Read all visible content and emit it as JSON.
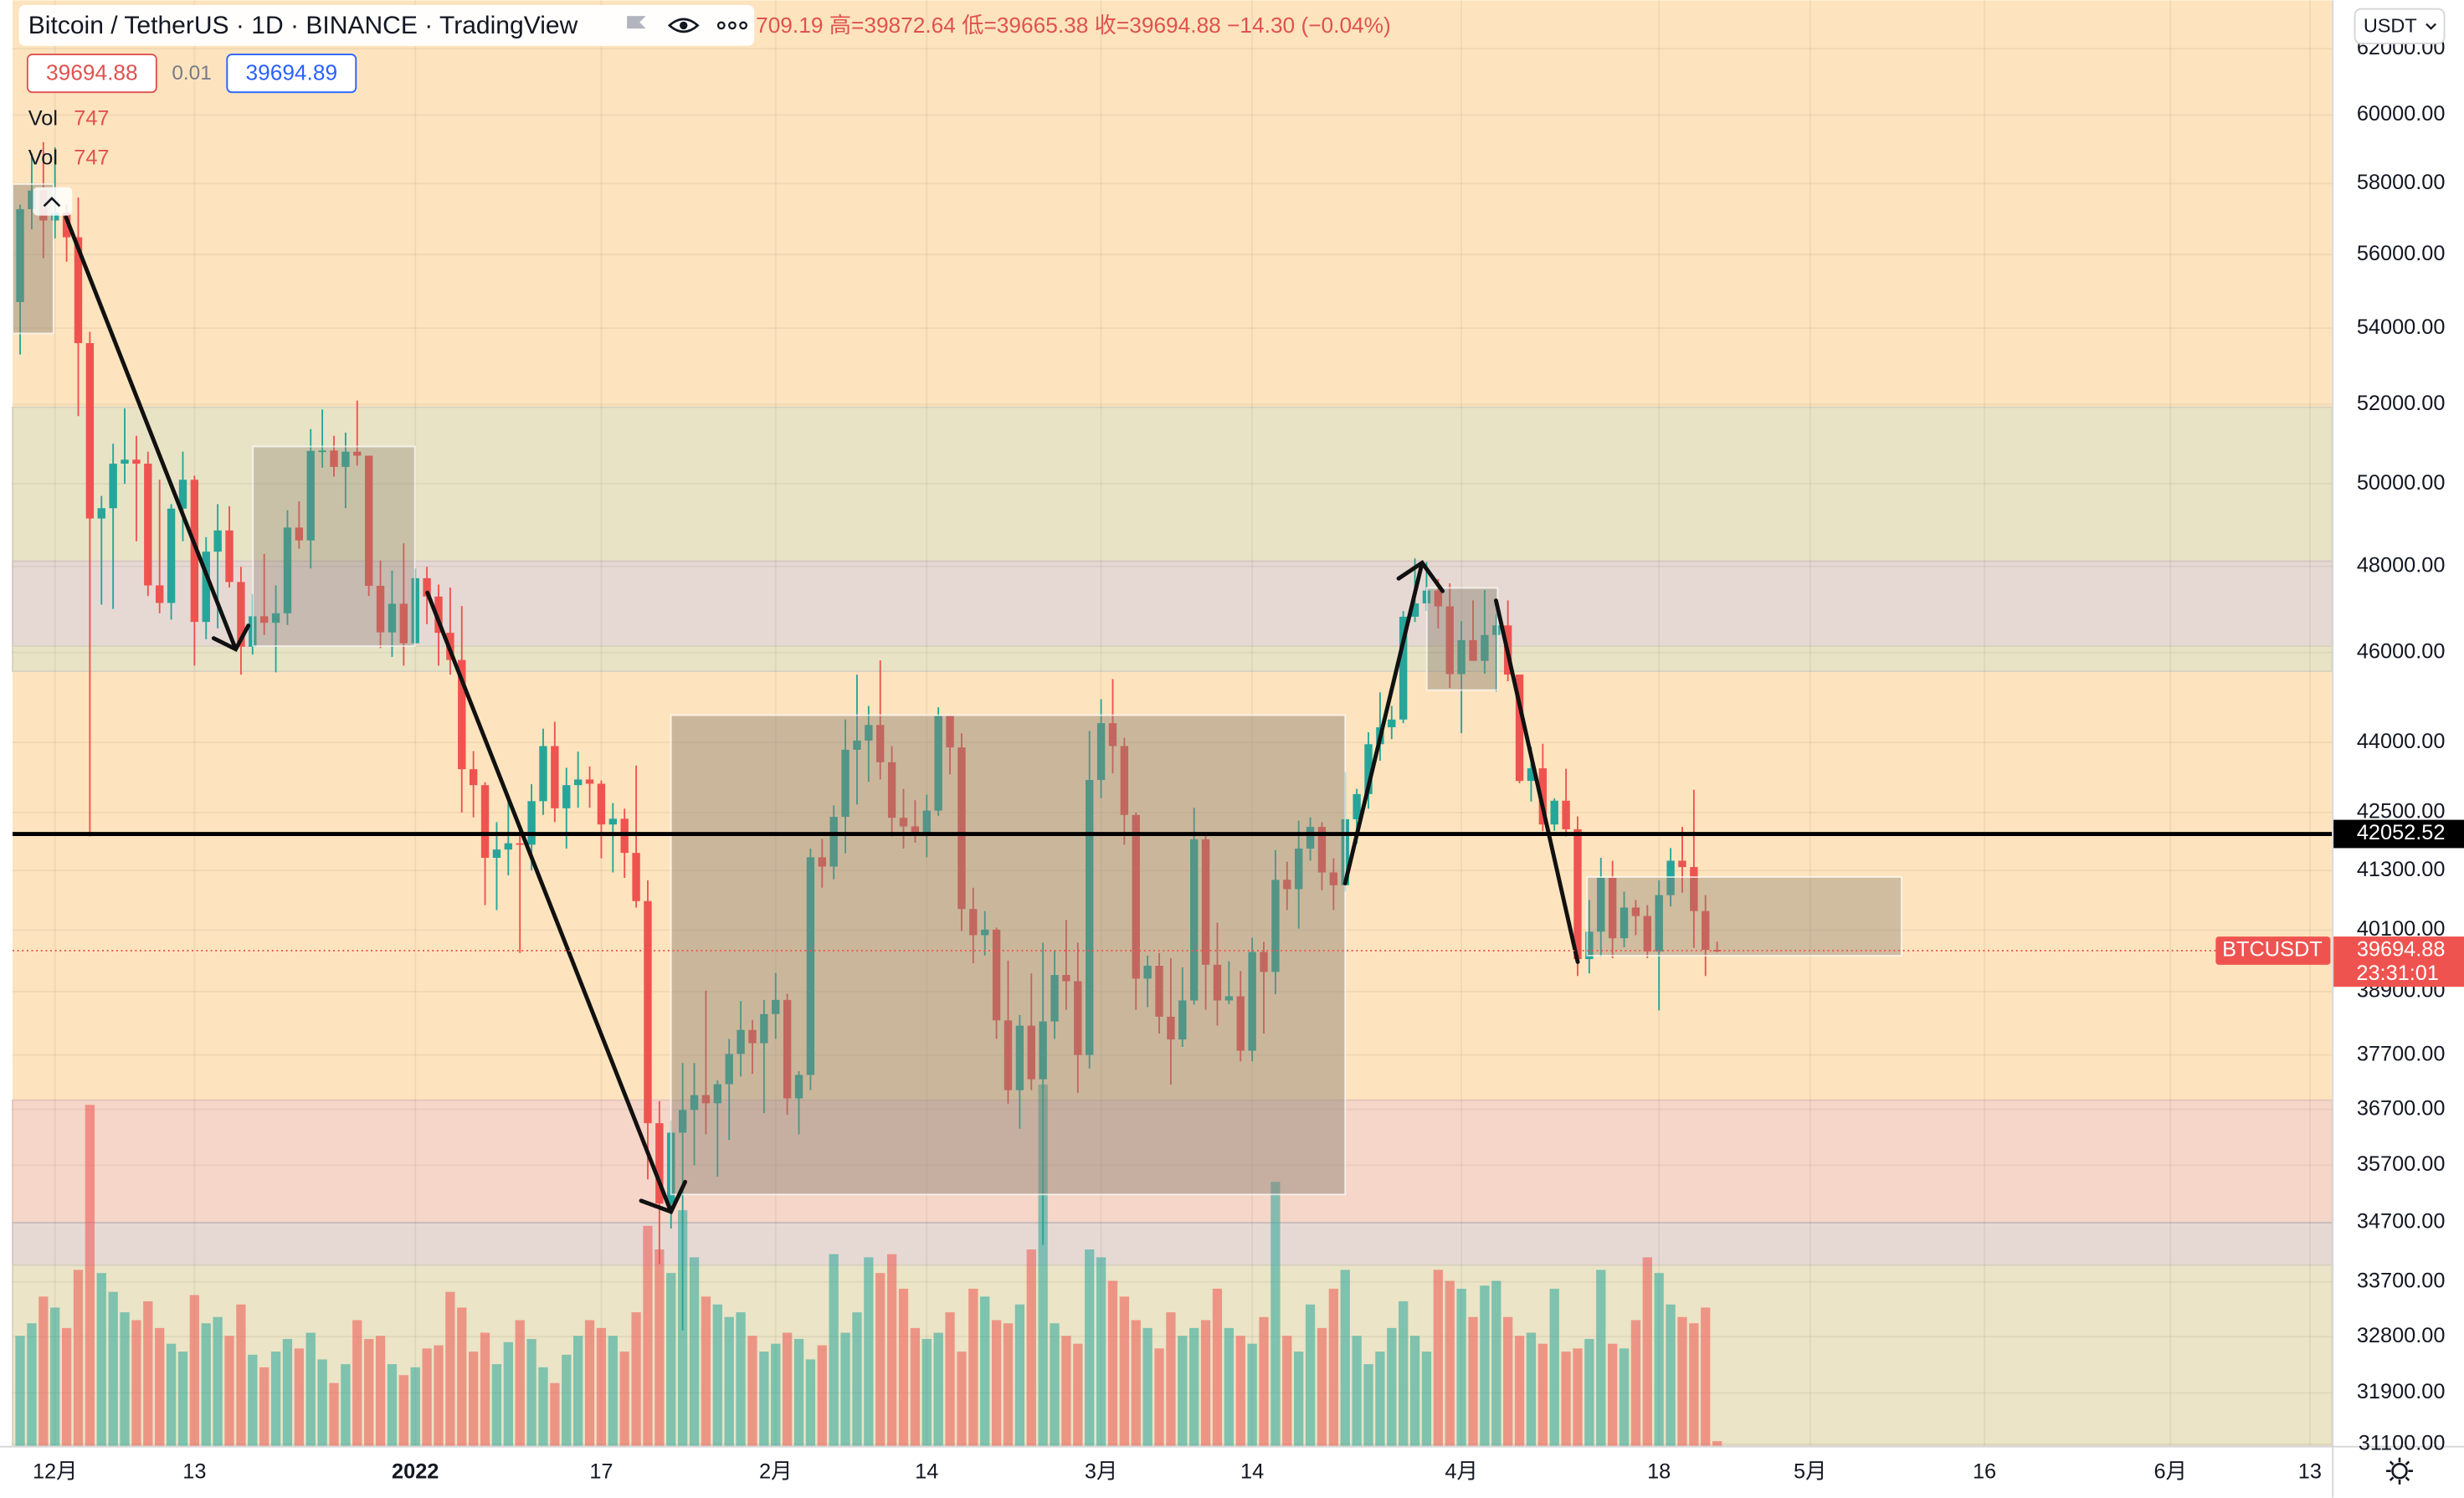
{
  "header": {
    "title": "Bitcoin / TetherUS · 1D · BINANCE · TradingView",
    "ohlc": "709.19  高=39872.64  低=39665.38  收=39694.88  −14.30 (−0.04%)",
    "sell": "39694.88",
    "spread": "0.01",
    "buy": "39694.89",
    "vol_rows": [
      {
        "name": "Vol",
        "value": "747"
      },
      {
        "name": "Vol",
        "value": "747"
      }
    ],
    "currency": "USDT"
  },
  "chart_data": {
    "type": "candlestick",
    "ylog": true,
    "grid": true,
    "ylim": [
      31100,
      63500
    ],
    "xlim": [
      -0.65,
      198.9
    ],
    "yticks": [
      {
        "value": 62000,
        "label": "62000.00"
      },
      {
        "value": 60000,
        "label": "60000.00"
      },
      {
        "value": 58000,
        "label": "58000.00"
      },
      {
        "value": 56000,
        "label": "56000.00"
      },
      {
        "value": 54000,
        "label": "54000.00"
      },
      {
        "value": 52000,
        "label": "52000.00"
      },
      {
        "value": 50000,
        "label": "50000.00"
      },
      {
        "value": 48000,
        "label": "48000.00"
      },
      {
        "value": 46000,
        "label": "46000.00"
      },
      {
        "value": 44000,
        "label": "44000.00"
      },
      {
        "value": 42500,
        "label": "42500.00"
      },
      {
        "value": 41300,
        "label": "41300.00"
      },
      {
        "value": 40100,
        "label": "40100.00"
      },
      {
        "value": 38900,
        "label": "38900.00"
      },
      {
        "value": 37700,
        "label": "37700.00"
      },
      {
        "value": 36700,
        "label": "36700.00"
      },
      {
        "value": 35700,
        "label": "35700.00"
      },
      {
        "value": 34700,
        "label": "34700.00"
      },
      {
        "value": 33700,
        "label": "33700.00"
      },
      {
        "value": 32800,
        "label": "32800.00"
      },
      {
        "value": 31900,
        "label": "31900.00"
      },
      {
        "value": 31100,
        "label": "31100.00"
      }
    ],
    "xticks": [
      {
        "value": 3,
        "label": "12月"
      },
      {
        "value": 15,
        "label": "13"
      },
      {
        "value": 34,
        "label": "2022"
      },
      {
        "value": 50,
        "label": "17"
      },
      {
        "value": 65,
        "label": "2月"
      },
      {
        "value": 78,
        "label": "14"
      },
      {
        "value": 93,
        "label": "3月"
      },
      {
        "value": 106,
        "label": "14"
      },
      {
        "value": 124,
        "label": "4月"
      },
      {
        "value": 141,
        "label": "18"
      },
      {
        "value": 154,
        "label": "5月"
      },
      {
        "value": 169,
        "label": "16"
      },
      {
        "value": 185,
        "label": "6月"
      },
      {
        "value": 197,
        "label": "13"
      }
    ],
    "up_color": "#26a69a",
    "down_color": "#ef5350",
    "open": [
      54700,
      57270,
      57800,
      56950,
      57180,
      56480,
      53600,
      49150,
      49400,
      50500,
      50600,
      50500,
      47550,
      47140,
      49390,
      50100,
      46700,
      48350,
      48860,
      47630,
      46130,
      46830,
      46680,
      46900,
      48930,
      48620,
      50820,
      50830,
      50420,
      50800,
      50700,
      47540,
      46460,
      47120,
      46210,
      47720,
      47290,
      46450,
      45830,
      43420,
      43080,
      41560,
      41730,
      41860,
      41830,
      42740,
      43920,
      42590,
      43080,
      43200,
      43110,
      42250,
      42370,
      41660,
      40680,
      36450,
      35030,
      36280,
      36690,
      36960,
      36810,
      37160,
      37720,
      38170,
      37920,
      38470,
      38740,
      36900,
      37330,
      41570,
      41380,
      42410,
      43840,
      44040,
      44380,
      43570,
      42390,
      42210,
      42060,
      42540,
      44580,
      43890,
      40520,
      40000,
      40110,
      38350,
      37050,
      38250,
      37250,
      38330,
      39220,
      39100,
      37700,
      43190,
      44420,
      43920,
      42450,
      39150,
      39400,
      38420,
      37990,
      38730,
      41940,
      39420,
      38730,
      38810,
      37780,
      39670,
      39280,
      41110,
      40920,
      41750,
      42200,
      41260,
      41000,
      42360,
      42890,
      43960,
      44330,
      44500,
      46820,
      47130,
      47430,
      47060,
      45510,
      46280,
      45810,
      46400,
      46620,
      45500,
      43170,
      43440,
      42250,
      42750,
      42150,
      39530,
      40070,
      41150,
      39940,
      40550,
      40380,
      39680,
      40800,
      41500,
      41370,
      40480,
      39709.19
    ],
    "high": [
      57400,
      58870,
      59200,
      59050,
      57400,
      57600,
      53900,
      49700,
      51000,
      51900,
      51200,
      50800,
      50100,
      49500,
      50800,
      50200,
      48700,
      49500,
      49450,
      47990,
      47350,
      48300,
      47550,
      49350,
      49570,
      51370,
      51870,
      51200,
      51280,
      52100,
      50700,
      48140,
      47900,
      48550,
      47950,
      47990,
      47570,
      47500,
      47070,
      43810,
      43140,
      42300,
      42790,
      42250,
      43100,
      44300,
      44450,
      43450,
      43800,
      43480,
      43180,
      42700,
      42580,
      43500,
      41100,
      36850,
      36500,
      37550,
      37550,
      38920,
      37230,
      38000,
      38720,
      38360,
      38740,
      39260,
      38860,
      37400,
      41750,
      41950,
      42650,
      44500,
      45500,
      44800,
      45820,
      43920,
      43000,
      42760,
      42880,
      44770,
      44580,
      44200,
      40950,
      40480,
      40150,
      39500,
      38450,
      39250,
      39850,
      39700,
      40300,
      39850,
      44250,
      44950,
      45400,
      44100,
      42500,
      39600,
      39650,
      39550,
      39370,
      42600,
      42050,
      40250,
      39490,
      39300,
      39950,
      39870,
      41720,
      41480,
      42330,
      42400,
      42300,
      41550,
      43360,
      43000,
      44220,
      45100,
      44800,
      46950,
      48190,
      48100,
      47700,
      47600,
      46720,
      47200,
      47440,
      46880,
      47200,
      45500,
      43900,
      43970,
      42800,
      43430,
      42420,
      40700,
      41560,
      41500,
      40870,
      40700,
      40600,
      41100,
      41760,
      42200,
      42980,
      40800,
      39872.64
    ],
    "low": [
      53300,
      56700,
      55900,
      56450,
      55800,
      51700,
      42000,
      47100,
      47000,
      50000,
      48600,
      47300,
      46900,
      46750,
      48600,
      45700,
      46300,
      46550,
      47500,
      45500,
      45950,
      46400,
      45550,
      46630,
      48420,
      47950,
      50400,
      50180,
      49400,
      50450,
      47300,
      46100,
      45900,
      45700,
      46200,
      46650,
      45700,
      45500,
      42500,
      42400,
      40600,
      40500,
      41200,
      39650,
      41300,
      42450,
      42300,
      41750,
      42600,
      42600,
      41550,
      41260,
      41150,
      40550,
      35450,
      34000,
      34600,
      32900,
      35700,
      36250,
      35500,
      36150,
      37300,
      37350,
      36630,
      38000,
      36600,
      36250,
      37050,
      40950,
      41120,
      41650,
      42670,
      43150,
      43200,
      42000,
      41750,
      41870,
      41570,
      42430,
      43310,
      40080,
      39450,
      39600,
      38000,
      36800,
      36350,
      37050,
      34320,
      38000,
      38550,
      37000,
      37450,
      42800,
      43330,
      41830,
      38550,
      38600,
      38100,
      37150,
      37850,
      38650,
      38550,
      38250,
      38660,
      37580,
      37580,
      38100,
      38850,
      40500,
      40130,
      41500,
      40900,
      40500,
      40870,
      41850,
      42580,
      43600,
      44070,
      44420,
      46700,
      46950,
      46550,
      45200,
      44200,
      45950,
      45520,
      45120,
      45350,
      43120,
      42730,
      42110,
      42120,
      42000,
      39200,
      39250,
      39580,
      39550,
      39760,
      40000,
      39550,
      38540,
      40570,
      40850,
      39750,
      39200,
      39665.38
    ],
    "close": [
      57270,
      57800,
      56950,
      57180,
      56480,
      53600,
      49150,
      49400,
      50500,
      50600,
      50500,
      47550,
      47140,
      49390,
      50100,
      46700,
      48350,
      48860,
      47630,
      46130,
      46830,
      46680,
      46900,
      48930,
      48620,
      50820,
      50830,
      50420,
      50800,
      50700,
      47540,
      46460,
      47120,
      46210,
      47720,
      47290,
      46450,
      45830,
      43420,
      43080,
      41560,
      41730,
      41860,
      41830,
      42740,
      43920,
      42590,
      43080,
      43200,
      43110,
      42250,
      42370,
      41660,
      40680,
      36450,
      35030,
      36280,
      36690,
      36960,
      36810,
      37160,
      37720,
      38170,
      37920,
      38470,
      38740,
      36900,
      37330,
      41570,
      41380,
      42410,
      43840,
      44040,
      44380,
      43570,
      42390,
      42210,
      42060,
      42540,
      44580,
      43890,
      40520,
      40000,
      40110,
      38350,
      37050,
      38250,
      37250,
      38330,
      39220,
      39100,
      37700,
      43190,
      44420,
      43920,
      42450,
      39150,
      39400,
      38420,
      37990,
      38730,
      41940,
      39420,
      38730,
      38810,
      37780,
      39670,
      39280,
      41110,
      40920,
      41750,
      42200,
      41260,
      41000,
      42360,
      42890,
      43960,
      44330,
      44500,
      46820,
      47130,
      47430,
      47060,
      45510,
      46280,
      45810,
      46400,
      46620,
      45500,
      43170,
      43440,
      42250,
      42750,
      42150,
      39530,
      40070,
      41150,
      39940,
      40550,
      40380,
      39680,
      40800,
      41500,
      41370,
      40480,
      39709.19,
      39694.88
    ],
    "volume": [
      70,
      78,
      95,
      88,
      75,
      112,
      217,
      110,
      98,
      85,
      80,
      92,
      75,
      65,
      60,
      96,
      78,
      82,
      70,
      90,
      58,
      50,
      60,
      68,
      62,
      72,
      55,
      40,
      52,
      80,
      68,
      70,
      52,
      45,
      50,
      62,
      64,
      98,
      88,
      60,
      72,
      52,
      66,
      80,
      68,
      50,
      40,
      58,
      70,
      80,
      75,
      70,
      60,
      85,
      140,
      125,
      110,
      150,
      120,
      95,
      90,
      82,
      85,
      70,
      60,
      65,
      72,
      68,
      55,
      64,
      122,
      72,
      85,
      120,
      110,
      122,
      100,
      75,
      68,
      72,
      85,
      60,
      100,
      95,
      80,
      78,
      90,
      125,
      230,
      78,
      70,
      65,
      125,
      120,
      105,
      95,
      80,
      75,
      62,
      85,
      70,
      75,
      80,
      100,
      75,
      70,
      65,
      82,
      168,
      70,
      60,
      90,
      75,
      100,
      112,
      70,
      52,
      60,
      75,
      92,
      70,
      60,
      112,
      105,
      100,
      82,
      102,
      105,
      82,
      70,
      72,
      65,
      100,
      60,
      62,
      68,
      112,
      65,
      62,
      80,
      120,
      110,
      90,
      82,
      78,
      88,
      3
    ],
    "hline": 42052.52,
    "last_price": {
      "symbol": "BTCUSDT",
      "value": 39694.88,
      "countdown": "23:31:01"
    }
  }
}
